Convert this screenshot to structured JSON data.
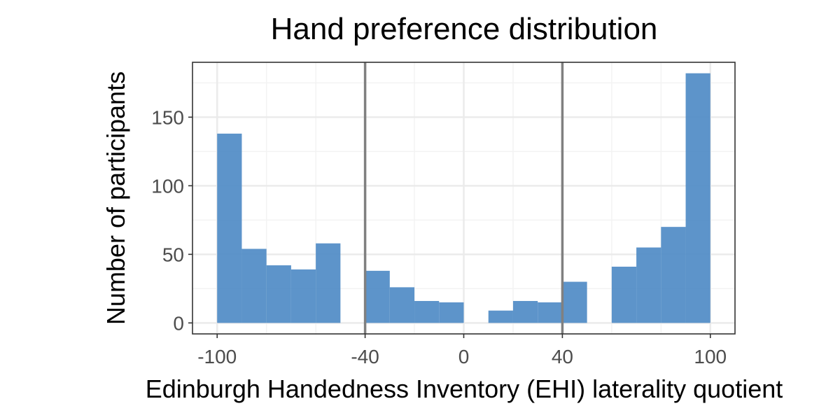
{
  "chart_data": {
    "type": "bar",
    "title": "Hand preference distribution",
    "xlabel": "Edinburgh Handedness Inventory (EHI) laterality quotient",
    "ylabel": "Number of participants",
    "xlim": [
      -110,
      110
    ],
    "ylim": [
      -8,
      190
    ],
    "x_ticks": [
      -100,
      -40,
      0,
      40,
      100
    ],
    "x_tick_labels": [
      "-100",
      "-40",
      "0",
      "40",
      "100"
    ],
    "y_ticks": [
      0,
      50,
      100,
      150
    ],
    "y_tick_labels": [
      "0",
      "50",
      "100",
      "150"
    ],
    "x_minor_ticks": [
      -80,
      -60,
      -20,
      20,
      60,
      80
    ],
    "bin_width": 10,
    "bins": [
      {
        "from": -100,
        "to": -90,
        "count": 138
      },
      {
        "from": -90,
        "to": -80,
        "count": 54
      },
      {
        "from": -80,
        "to": -70,
        "count": 42
      },
      {
        "from": -70,
        "to": -60,
        "count": 39
      },
      {
        "from": -60,
        "to": -50,
        "count": 58
      },
      {
        "from": -40,
        "to": -30,
        "count": 38
      },
      {
        "from": -30,
        "to": -20,
        "count": 26
      },
      {
        "from": -20,
        "to": -10,
        "count": 16
      },
      {
        "from": -10,
        "to": 0,
        "count": 15
      },
      {
        "from": 10,
        "to": 20,
        "count": 9
      },
      {
        "from": 20,
        "to": 30,
        "count": 16
      },
      {
        "from": 30,
        "to": 40,
        "count": 15
      },
      {
        "from": 40,
        "to": 50,
        "count": 30
      },
      {
        "from": 60,
        "to": 70,
        "count": 41
      },
      {
        "from": 70,
        "to": 80,
        "count": 55
      },
      {
        "from": 80,
        "to": 90,
        "count": 70
      },
      {
        "from": 90,
        "to": 100,
        "count": 182
      }
    ],
    "reference_lines": [
      -40,
      40
    ],
    "grid": true,
    "legend": "none",
    "colors": {
      "bar": "#4f8bc5",
      "reference_line": "#808080"
    }
  }
}
